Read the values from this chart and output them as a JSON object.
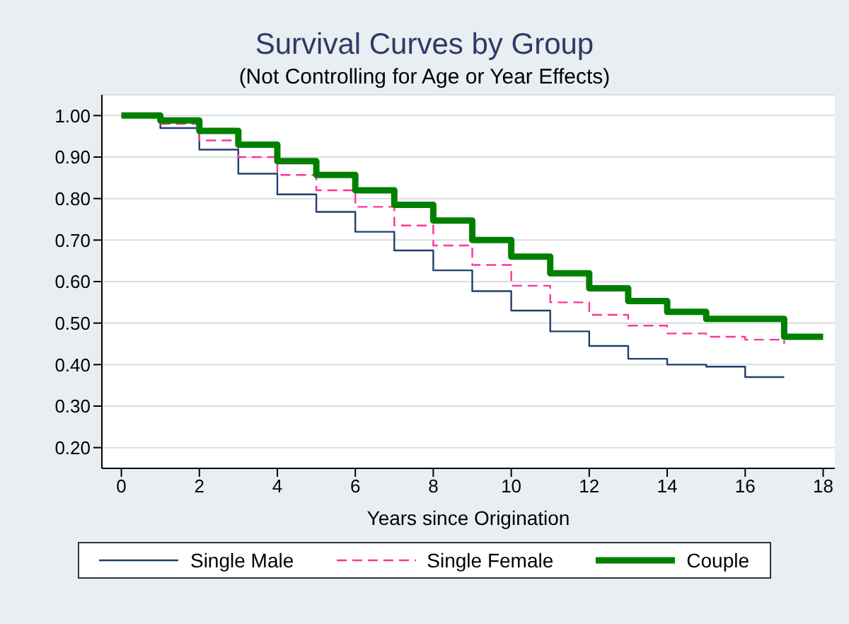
{
  "chart_data": {
    "type": "step",
    "title": "Survival Curves by Group",
    "subtitle": "(Not Controlling for Age or Year Effects)",
    "xlabel": "Years since Origination",
    "xlim": [
      -0.5,
      18.3
    ],
    "xticks": [
      0,
      2,
      4,
      6,
      8,
      10,
      12,
      14,
      16,
      18
    ],
    "ylim": [
      0.15,
      1.05
    ],
    "yticks": [
      {
        "value": 0.2,
        "label": "0.20"
      },
      {
        "value": 0.3,
        "label": "0.30"
      },
      {
        "value": 0.4,
        "label": "0.40"
      },
      {
        "value": 0.5,
        "label": "0.50"
      },
      {
        "value": 0.6,
        "label": "0.60"
      },
      {
        "value": 0.7,
        "label": "0.70"
      },
      {
        "value": 0.8,
        "label": "0.80"
      },
      {
        "value": 0.9,
        "label": "0.90"
      },
      {
        "value": 1.0,
        "label": "1.00"
      }
    ],
    "grid": "y",
    "legend": "bottom",
    "marker": "none",
    "series": [
      {
        "name": "Single Male",
        "color": "#1f3f6e",
        "line_style": "solid",
        "x": [
          0,
          1,
          2,
          3,
          4,
          5,
          6,
          7,
          8,
          9,
          10,
          11,
          12,
          13,
          14,
          15,
          16,
          17
        ],
        "values": [
          1.0,
          0.97,
          0.918,
          0.86,
          0.81,
          0.768,
          0.72,
          0.675,
          0.627,
          0.577,
          0.53,
          0.48,
          0.445,
          0.414,
          0.4,
          0.395,
          0.37,
          0.37
        ]
      },
      {
        "name": "Single Female",
        "color": "#ff3399",
        "line_style": "dashed",
        "x": [
          1,
          2,
          3,
          4,
          5,
          6,
          7,
          8,
          9,
          10,
          11,
          12,
          13,
          14,
          15,
          16,
          17
        ],
        "values": [
          0.98,
          0.94,
          0.9,
          0.857,
          0.82,
          0.78,
          0.735,
          0.687,
          0.64,
          0.59,
          0.55,
          0.52,
          0.494,
          0.475,
          0.467,
          0.46,
          0.45
        ]
      },
      {
        "name": "Couple",
        "color": "#008000",
        "line_style": "solid",
        "x": [
          0,
          1,
          2,
          3,
          4,
          5,
          6,
          7,
          8,
          9,
          10,
          11,
          12,
          13,
          14,
          15,
          17,
          18
        ],
        "values": [
          1.0,
          0.988,
          0.963,
          0.93,
          0.89,
          0.857,
          0.82,
          0.785,
          0.747,
          0.7,
          0.66,
          0.62,
          0.584,
          0.553,
          0.527,
          0.51,
          0.467,
          0.467
        ]
      }
    ]
  }
}
